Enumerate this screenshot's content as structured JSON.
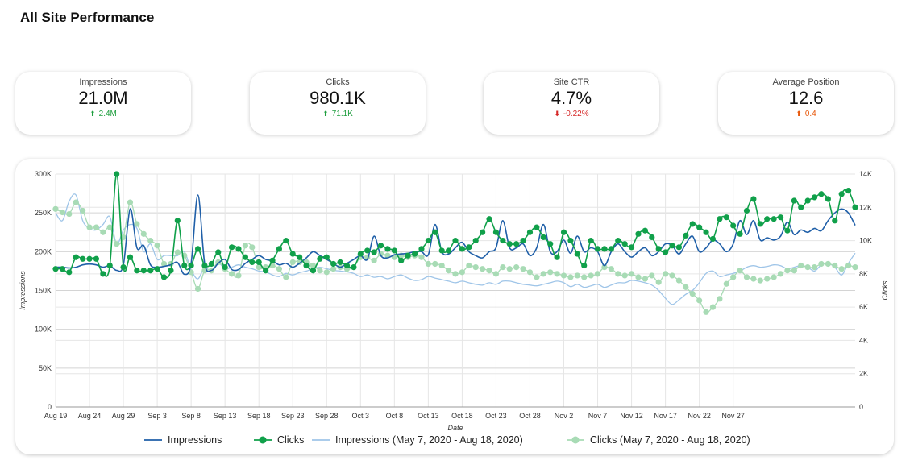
{
  "title": "All Site Performance",
  "kpis": [
    {
      "label": "Impressions",
      "value": "21.0M",
      "delta": "2.4M",
      "direction": "up",
      "color": "#1e9e3e"
    },
    {
      "label": "Clicks",
      "value": "980.1K",
      "delta": "71.1K",
      "direction": "up",
      "color": "#1e9e3e"
    },
    {
      "label": "Site CTR",
      "value": "4.7%",
      "delta": "-0.22%",
      "direction": "down",
      "color": "#d62828"
    },
    {
      "label": "Average Position",
      "value": "12.6",
      "delta": "0.4",
      "direction": "up",
      "color": "#e8590c"
    }
  ],
  "chart_data": {
    "type": "line",
    "xlabel": "Date",
    "ylabel_left": "Impressions",
    "ylabel_right": "Clicks",
    "x_tick_labels": [
      "Aug 19",
      "Aug 24",
      "Aug 29",
      "Sep 3",
      "Sep 8",
      "Sep 13",
      "Sep 18",
      "Sep 23",
      "Sep 28",
      "Oct 3",
      "Oct 8",
      "Oct 13",
      "Oct 18",
      "Oct 23",
      "Oct 28",
      "Nov 2",
      "Nov 7",
      "Nov 12",
      "Nov 17",
      "Nov 22",
      "Nov 27"
    ],
    "y_left_ticks": [
      "0",
      "50K",
      "100K",
      "150K",
      "200K",
      "250K",
      "300K"
    ],
    "y_right_ticks": [
      "0",
      "2K",
      "4K",
      "6K",
      "8K",
      "10K",
      "12K",
      "14K"
    ],
    "y_left_range": [
      0,
      300000
    ],
    "y_right_range": [
      0,
      14000
    ],
    "grid": true,
    "legend_position": "bottom",
    "series": [
      {
        "name": "Impressions",
        "axis": "left",
        "color": "#1f5fa8",
        "markers": false,
        "values": [
          180000,
          180000,
          179000,
          180000,
          183000,
          184000,
          183000,
          180000,
          182000,
          176000,
          183000,
          255000,
          205000,
          208000,
          183000,
          180000,
          181000,
          183000,
          186000,
          171000,
          185000,
          273000,
          185000,
          176000,
          185000,
          190000,
          177000,
          177000,
          185000,
          190000,
          195000,
          190000,
          188000,
          183000,
          185000,
          180000,
          185000,
          192000,
          200000,
          195000,
          190000,
          185000,
          180000,
          185000,
          190000,
          195000,
          190000,
          220000,
          195000,
          192000,
          196000,
          197000,
          198000,
          200000,
          200000,
          196000,
          235000,
          200000,
          197000,
          205000,
          212000,
          200000,
          195000,
          192000,
          200000,
          205000,
          240000,
          205000,
          205000,
          210000,
          195000,
          205000,
          235000,
          200000,
          200000,
          215000,
          198000,
          220000,
          200000,
          205000,
          200000,
          182000,
          200000,
          210000,
          200000,
          193000,
          200000,
          205000,
          195000,
          200000,
          210000,
          208000,
          197000,
          210000,
          220000,
          200000,
          205000,
          215000,
          210000,
          200000,
          210000,
          240000,
          222000,
          240000,
          215000,
          218000,
          215000,
          220000,
          238000,
          222000,
          228000,
          225000,
          230000,
          227000,
          240000,
          250000,
          255000,
          250000,
          234000
        ]
      },
      {
        "name": "Clicks",
        "axis": "right",
        "color": "#10a04a",
        "markers": true,
        "values": [
          8300,
          8300,
          8100,
          9000,
          8900,
          8900,
          8900,
          8000,
          8500,
          14000,
          8400,
          9000,
          8200,
          8200,
          8200,
          8300,
          7800,
          8200,
          11200,
          8500,
          8500,
          9500,
          8500,
          8600,
          9300,
          8400,
          9600,
          9500,
          9000,
          8700,
          8700,
          8200,
          8800,
          9500,
          10000,
          9200,
          9000,
          8500,
          8200,
          8900,
          9000,
          8600,
          8700,
          8500,
          8400,
          9200,
          9400,
          9300,
          9700,
          9500,
          9400,
          8800,
          9100,
          9200,
          9500,
          10000,
          10500,
          9400,
          9400,
          10000,
          9500,
          9600,
          10000,
          10500,
          11300,
          10500,
          10000,
          9800,
          9800,
          10000,
          10500,
          10800,
          10200,
          9800,
          9000,
          10500,
          10000,
          9200,
          8500,
          10000,
          9500,
          9500,
          9500,
          10000,
          9800,
          9600,
          10400,
          10600,
          10200,
          9500,
          9300,
          9700,
          9600,
          10300,
          11000,
          10800,
          10500,
          10100,
          11300,
          11400,
          10900,
          10400,
          11800,
          12500,
          11000,
          11300,
          11300,
          11400,
          10600,
          12400,
          12000,
          12400,
          12600,
          12800,
          12500,
          11200,
          12800,
          13000,
          12000
        ]
      },
      {
        "name": "Impressions (May 7, 2020 - Aug 18, 2020)",
        "axis": "left",
        "color": "#9fc5e8",
        "markers": false,
        "values": [
          250000,
          240000,
          265000,
          273000,
          240000,
          230000,
          228000,
          235000,
          245000,
          210000,
          228000,
          235000,
          230000,
          200000,
          210000,
          190000,
          195000,
          195000,
          195000,
          200000,
          177000,
          165000,
          180000,
          174000,
          185000,
          178000,
          180000,
          183000,
          180000,
          178000,
          175000,
          174000,
          170000,
          168000,
          172000,
          170000,
          173000,
          175000,
          178000,
          180000,
          178000,
          176000,
          175000,
          174000,
          172000,
          168000,
          170000,
          167000,
          168000,
          165000,
          168000,
          170000,
          166000,
          163000,
          164000,
          168000,
          166000,
          164000,
          162000,
          160000,
          162000,
          160000,
          158000,
          157000,
          160000,
          158000,
          162000,
          162000,
          160000,
          158000,
          157000,
          156000,
          158000,
          160000,
          162000,
          160000,
          155000,
          158000,
          154000,
          156000,
          158000,
          154000,
          157000,
          160000,
          160000,
          163000,
          162000,
          160000,
          157000,
          150000,
          140000,
          132000,
          138000,
          145000,
          150000,
          160000,
          172000,
          175000,
          168000,
          170000,
          172000,
          175000,
          180000,
          182000,
          180000,
          181000,
          183000,
          182000,
          178000,
          180000,
          182000,
          180000,
          175000,
          183000,
          185000,
          180000,
          170000,
          185000,
          198000
        ]
      },
      {
        "name": "Clicks (May 7, 2020 - Aug 18, 2020)",
        "axis": "right",
        "color": "#a8dbb5",
        "markers": true,
        "values": [
          11900,
          11700,
          11600,
          12300,
          11800,
          10800,
          10800,
          10500,
          10800,
          9800,
          10200,
          12300,
          11000,
          10400,
          10000,
          9700,
          8600,
          8600,
          9300,
          9100,
          8100,
          7100,
          8200,
          8200,
          8700,
          8300,
          8000,
          7900,
          9700,
          9600,
          8400,
          8400,
          8500,
          8300,
          7800,
          8700,
          8700,
          8700,
          8500,
          8200,
          8100,
          8300,
          8400,
          8300,
          8400,
          9000,
          9000,
          8800,
          9200,
          9100,
          9000,
          9100,
          9000,
          9100,
          9000,
          8600,
          8600,
          8500,
          8200,
          8000,
          8100,
          8500,
          8400,
          8300,
          8200,
          8000,
          8400,
          8300,
          8400,
          8300,
          8100,
          7800,
          8000,
          8100,
          8000,
          7900,
          7800,
          7900,
          7800,
          7900,
          8000,
          8400,
          8300,
          8000,
          7900,
          8000,
          7800,
          7700,
          7900,
          7500,
          8000,
          7900,
          7600,
          7200,
          6800,
          6400,
          5700,
          6000,
          6500,
          7400,
          7800,
          8200,
          7800,
          7700,
          7600,
          7700,
          7800,
          8000,
          8200,
          8200,
          8500,
          8400,
          8400,
          8600,
          8600,
          8500,
          8300,
          8500,
          8400
        ]
      }
    ]
  }
}
